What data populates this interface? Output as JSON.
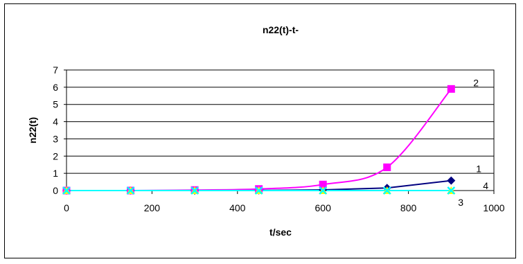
{
  "chart_data": {
    "type": "line",
    "title": "n22(t)-t-",
    "xlabel": "t/sec",
    "ylabel": "n22(t)",
    "xlim": [
      0,
      1000
    ],
    "ylim": [
      0,
      7
    ],
    "x_ticks": [
      0,
      200,
      400,
      600,
      800,
      1000
    ],
    "y_ticks": [
      0,
      1,
      2,
      3,
      4,
      5,
      6,
      7
    ],
    "grid": "horizontal",
    "x": [
      0,
      150,
      300,
      450,
      600,
      750,
      900
    ],
    "series": [
      {
        "label": "1",
        "color": "#000080",
        "marker": "diamond",
        "smooth": false,
        "values": [
          0,
          0,
          0,
          0.01,
          0.04,
          0.15,
          0.58
        ]
      },
      {
        "label": "2",
        "color": "#FF00FF",
        "marker": "square",
        "smooth": true,
        "values": [
          0,
          0,
          0.03,
          0.09,
          0.35,
          1.35,
          5.9
        ]
      },
      {
        "label": "3",
        "color": "#FFFF00",
        "marker": "triangle",
        "smooth": false,
        "values": [
          0,
          0,
          0,
          0,
          0,
          0,
          0
        ]
      },
      {
        "label": "4",
        "color": "#00FFFF",
        "marker": "x",
        "smooth": false,
        "values": [
          0,
          0,
          0,
          0,
          0,
          0,
          0
        ]
      }
    ]
  }
}
